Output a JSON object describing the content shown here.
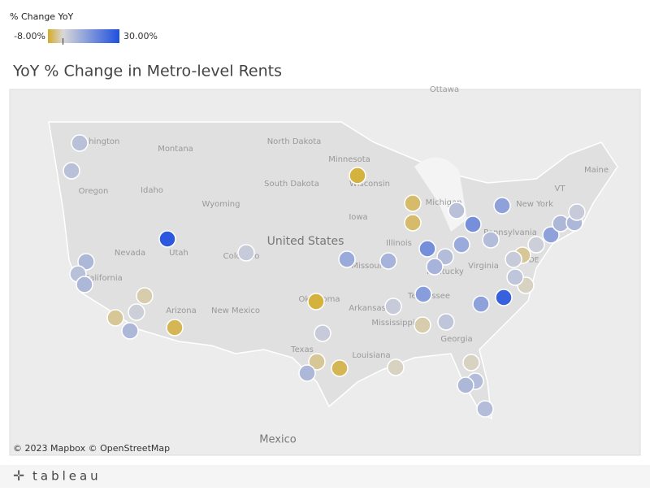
{
  "legend": {
    "title": "% Change YoY",
    "min": {
      "value": -8,
      "label": "-8.00%"
    },
    "max": {
      "value": 30,
      "label": "30.00%"
    },
    "center": 0,
    "colors": [
      "#d4ab28",
      "#d8d8d8",
      "#1f4fde"
    ]
  },
  "title": "YoY % Change in Metro-level Rents",
  "map_labels": [
    "Washington",
    "Montana",
    "North Dakota",
    "Minnesota",
    "Oregon",
    "Idaho",
    "Wyoming",
    "South Dakota",
    "Wisconsin",
    "Michigan",
    "New York",
    "VT",
    "Maine",
    "Iowa",
    "United States",
    "Nevada",
    "Utah",
    "Colorado",
    "Illinois",
    "Missouri",
    "Kentucky",
    "Virginia",
    "Pennsylvania",
    "California",
    "Arizona",
    "New Mexico",
    "Oklahoma",
    "Arkansas",
    "Tennessee",
    "Mississippi",
    "Georgia",
    "Texas",
    "Louisiana",
    "Mexico",
    "Ottawa",
    "DE"
  ],
  "attribution": "© 2023 Mapbox  © OpenStreetMap",
  "brand": "tableau",
  "markers": [
    5,
    5,
    28,
    7,
    5,
    7,
    -2,
    -3,
    2,
    7,
    -6,
    3,
    -7,
    -5,
    -5,
    10,
    8,
    -7,
    3,
    -3,
    7,
    -6,
    -1,
    3,
    -2,
    4,
    13,
    16,
    6,
    8,
    5,
    16,
    10,
    6,
    12,
    12,
    26,
    -1,
    4,
    -3,
    3,
    2,
    12,
    7,
    7,
    3,
    -1,
    6,
    7,
    6
  ]
}
